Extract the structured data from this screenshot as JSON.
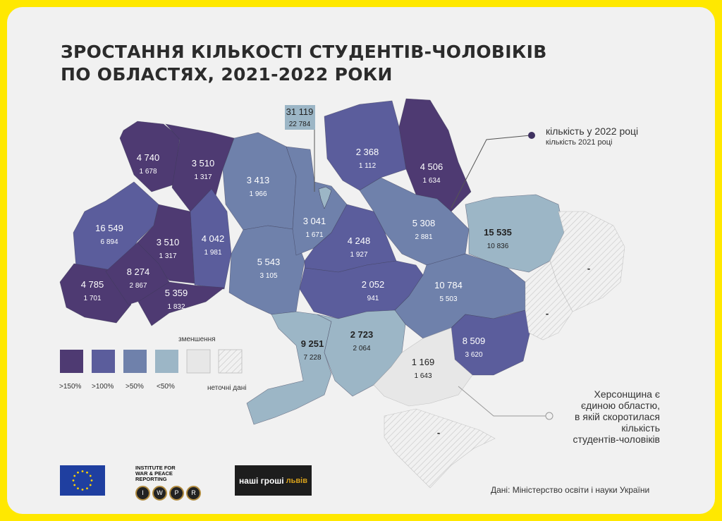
{
  "title": {
    "line1": "ЗРОСТАННЯ КІЛЬКОСТІ СТУДЕНТІВ-ЧОЛОВІКІВ",
    "line2": "ПО ОБЛАСТЯХ, 2021-2022 РОКИ"
  },
  "colors": {
    "over150": "#4e3a72",
    "over100": "#5b5d9c",
    "over50": "#6f81ab",
    "under50": "#9cb6c6",
    "decrease": "#e7e7e7",
    "inaccurate": "hatched",
    "frame": "#ffe800"
  },
  "regions": [
    {
      "v2022": "4 740",
      "v2021": "1 678",
      "cat": "over150"
    },
    {
      "v2022": "3 510",
      "v2021": "1 317",
      "cat": "over150"
    },
    {
      "v2022": "16 549",
      "v2021": "6 894",
      "cat": "over100"
    },
    {
      "v2022": "3 510",
      "v2021": "1 317",
      "cat": "over150"
    },
    {
      "v2022": "4 042",
      "v2021": "1 981",
      "cat": "over100"
    },
    {
      "v2022": "4 785",
      "v2021": "1 701",
      "cat": "over150"
    },
    {
      "v2022": "8 274",
      "v2021": "2 867",
      "cat": "over150"
    },
    {
      "v2022": "5 359",
      "v2021": "1 832",
      "cat": "over150"
    },
    {
      "v2022": "3 413",
      "v2021": "1 966",
      "cat": "over50"
    },
    {
      "v2022": "5 543",
      "v2021": "3 105",
      "cat": "over50"
    },
    {
      "v2022": "3 041",
      "v2021": "1 671",
      "cat": "over50"
    },
    {
      "v2022": "2 368",
      "v2021": "1 112",
      "cat": "over100"
    },
    {
      "v2022": "4 506",
      "v2021": "1 634",
      "cat": "over150"
    },
    {
      "v2022": "5 308",
      "v2021": "2 881",
      "cat": "over50"
    },
    {
      "v2022": "4 248",
      "v2021": "1 927",
      "cat": "over100"
    },
    {
      "v2022": "2 052",
      "v2021": "941",
      "cat": "over100"
    },
    {
      "v2022": "15 535",
      "v2021": "10 836",
      "cat": "under50"
    },
    {
      "v2022": "10 784",
      "v2021": "5 503",
      "cat": "over50"
    },
    {
      "v2022": "8 509",
      "v2021": "3 620",
      "cat": "over100"
    },
    {
      "v2022": "-",
      "v2021": "",
      "cat": "inaccurate"
    },
    {
      "v2022": "-",
      "v2021": "",
      "cat": "inaccurate"
    },
    {
      "v2022": "9 251",
      "v2021": "7 228",
      "cat": "under50"
    },
    {
      "v2022": "2 723",
      "v2021": "2 064",
      "cat": "under50"
    },
    {
      "v2022": "1 169",
      "v2021": "1 643",
      "cat": "decrease"
    },
    {
      "v2022": "-",
      "v2021": "",
      "cat": "inaccurate"
    },
    {
      "v2022": "31 119",
      "v2021": "22 784",
      "cat": "under50"
    }
  ],
  "key": {
    "line1": "кількість у 2022 році",
    "line2": "кількість 2021 році"
  },
  "legend": {
    "decrease_heading": "зменшення",
    "items": [
      ">150%",
      ">100%",
      ">50%",
      "<50%"
    ],
    "inaccurate": "неточні дані"
  },
  "kherson_note": [
    "Херсонщина є",
    "єдиною областю,",
    "в якій скоротилася",
    "кількість",
    "студентів-чоловіків"
  ],
  "logos": {
    "eu": "EU flag",
    "iwpr_text": "INSTITUTE FOR WAR & PEACE REPORTING",
    "iwpr_letters": [
      "I",
      "W",
      "P",
      "R"
    ],
    "ng1": "наші гроші",
    "ng2": "львів"
  },
  "source": "Дані: Міністерство освіти і науки України"
}
